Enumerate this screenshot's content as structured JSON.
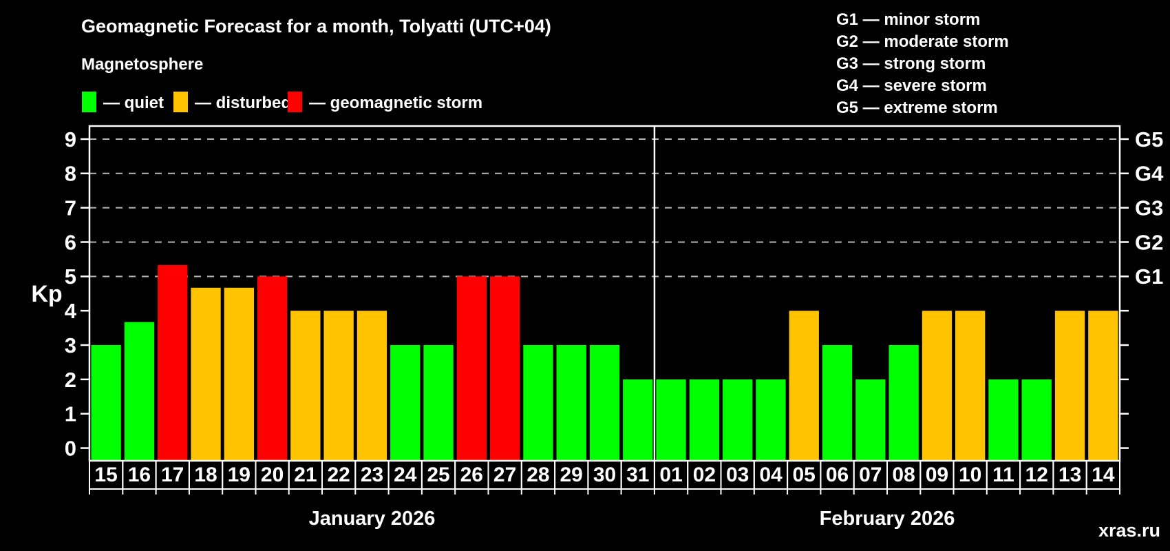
{
  "title": "Geomagnetic Forecast for a month, Tolyatti (UTC+04)",
  "subtitle": "Magnetosphere",
  "legend": {
    "quiet": "— quiet",
    "disturbed": "— disturbed",
    "storm": "— geomagnetic storm"
  },
  "g_legend": [
    "G1 — minor storm",
    "G2 — moderate storm",
    "G3 — strong storm",
    "G4 — severe storm",
    "G5 — extreme storm"
  ],
  "watermark": "xras.ru",
  "colors": {
    "quiet": "#00ff00",
    "disturbed": "#ffc300",
    "storm": "#ff0000",
    "background": "#000000",
    "grid": "#b8b8b8",
    "axis": "#ffffff",
    "text": "#ffffff",
    "watermark": "#909090"
  },
  "chart_data": {
    "type": "bar",
    "ylabel": "Kp",
    "yticks": [
      0,
      1,
      2,
      3,
      4,
      5,
      6,
      7,
      8,
      9
    ],
    "ylim": [
      0,
      9
    ],
    "grid_levels": [
      5,
      6,
      7,
      8,
      9
    ],
    "legend_position": "top-left",
    "right_axis": [
      {
        "kp": 5,
        "label": "G1"
      },
      {
        "kp": 6,
        "label": "G2"
      },
      {
        "kp": 7,
        "label": "G3"
      },
      {
        "kp": 8,
        "label": "G4"
      },
      {
        "kp": 9,
        "label": "G5"
      }
    ],
    "months": [
      {
        "label": "January 2026",
        "bars": [
          {
            "day": "15",
            "kp": 3,
            "status": "quiet"
          },
          {
            "day": "16",
            "kp": 3.67,
            "status": "quiet"
          },
          {
            "day": "17",
            "kp": 5.33,
            "status": "storm"
          },
          {
            "day": "18",
            "kp": 4.67,
            "status": "disturbed"
          },
          {
            "day": "19",
            "kp": 4.67,
            "status": "disturbed"
          },
          {
            "day": "20",
            "kp": 5,
            "status": "storm"
          },
          {
            "day": "21",
            "kp": 4,
            "status": "disturbed"
          },
          {
            "day": "22",
            "kp": 4,
            "status": "disturbed"
          },
          {
            "day": "23",
            "kp": 4,
            "status": "disturbed"
          },
          {
            "day": "24",
            "kp": 3,
            "status": "quiet"
          },
          {
            "day": "25",
            "kp": 3,
            "status": "quiet"
          },
          {
            "day": "26",
            "kp": 5,
            "status": "storm"
          },
          {
            "day": "27",
            "kp": 5,
            "status": "storm"
          },
          {
            "day": "28",
            "kp": 3,
            "status": "quiet"
          },
          {
            "day": "29",
            "kp": 3,
            "status": "quiet"
          },
          {
            "day": "30",
            "kp": 3,
            "status": "quiet"
          },
          {
            "day": "31",
            "kp": 2,
            "status": "quiet"
          }
        ]
      },
      {
        "label": "February 2026",
        "bars": [
          {
            "day": "01",
            "kp": 2,
            "status": "quiet"
          },
          {
            "day": "02",
            "kp": 2,
            "status": "quiet"
          },
          {
            "day": "03",
            "kp": 2,
            "status": "quiet"
          },
          {
            "day": "04",
            "kp": 2,
            "status": "quiet"
          },
          {
            "day": "05",
            "kp": 4,
            "status": "disturbed"
          },
          {
            "day": "06",
            "kp": 3,
            "status": "quiet"
          },
          {
            "day": "07",
            "kp": 2,
            "status": "quiet"
          },
          {
            "day": "08",
            "kp": 3,
            "status": "quiet"
          },
          {
            "day": "09",
            "kp": 4,
            "status": "disturbed"
          },
          {
            "day": "10",
            "kp": 4,
            "status": "disturbed"
          },
          {
            "day": "11",
            "kp": 2,
            "status": "quiet"
          },
          {
            "day": "12",
            "kp": 2,
            "status": "quiet"
          },
          {
            "day": "13",
            "kp": 4,
            "status": "disturbed"
          },
          {
            "day": "14",
            "kp": 4,
            "status": "disturbed"
          }
        ]
      }
    ]
  }
}
